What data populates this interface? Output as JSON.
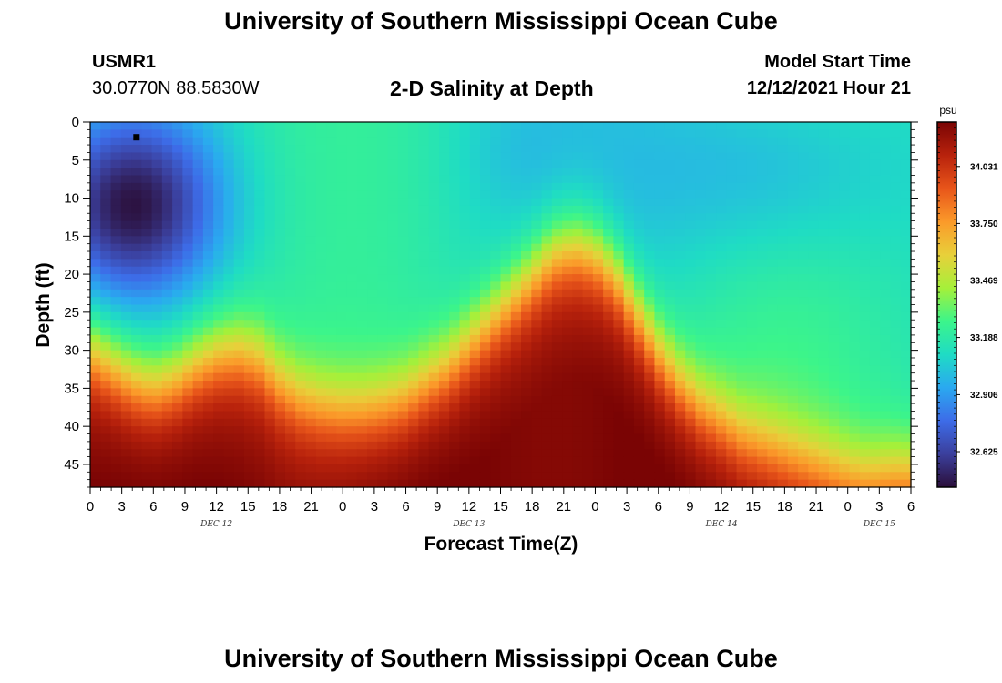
{
  "header": {
    "title": "University of Southern Mississippi Ocean Cube",
    "station": "USMR1",
    "coordinates": "30.0770N  88.5830W",
    "subtitle": "2-D Salinity at Depth",
    "start_label": "Model Start Time",
    "start_value": "12/12/2021 Hour 21"
  },
  "footer": {
    "title": "University of Southern Mississippi Ocean Cube"
  },
  "chart_data": {
    "type": "heatmap",
    "title": "2-D Salinity at Depth",
    "xlabel": "Forecast Time(Z)",
    "ylabel": "Depth (ft)",
    "x_range_hours": [
      0,
      78
    ],
    "y_range_ft": [
      0,
      48
    ],
    "x_tick_labels": [
      "0",
      "3",
      "6",
      "9",
      "12",
      "15",
      "18",
      "21",
      "0",
      "3",
      "6",
      "9",
      "12",
      "15",
      "18",
      "21",
      "0",
      "3",
      "6",
      "9",
      "12",
      "15",
      "18",
      "21",
      "0",
      "3",
      "6"
    ],
    "y_tick_labels": [
      "0",
      "5",
      "10",
      "15",
      "20",
      "25",
      "30",
      "35",
      "40",
      "45"
    ],
    "y_tick_values": [
      0,
      5,
      10,
      15,
      20,
      25,
      30,
      35,
      40,
      45
    ],
    "day_labels": [
      {
        "text": "DEC 12",
        "hour": 12
      },
      {
        "text": "DEC 13",
        "hour": 36
      },
      {
        "text": "DEC 14",
        "hour": 60
      },
      {
        "text": "DEC 15",
        "hour": 75
      }
    ],
    "colorbar": {
      "unit": "psu",
      "min": 32.45,
      "max": 34.25,
      "labels": [
        "34.031",
        "33.750",
        "33.469",
        "33.188",
        "32.906",
        "32.625"
      ],
      "label_values": [
        34.031,
        33.75,
        33.469,
        33.188,
        32.906,
        32.625
      ],
      "colors": [
        "#2b0f3a",
        "#3b3f9c",
        "#3d6ce8",
        "#2aa9f0",
        "#1fdcc4",
        "#3cf58a",
        "#a5f03a",
        "#e8d03a",
        "#fb9a2a",
        "#e8551a",
        "#b8220c",
        "#7a0404"
      ]
    },
    "marker": {
      "hour": 4.4,
      "depth_ft": 2
    },
    "interface_depth_ft": {
      "hours": [
        0,
        2,
        4,
        6,
        8,
        10,
        12,
        14,
        16,
        18,
        20,
        22,
        24,
        26,
        28,
        30,
        32,
        34,
        36,
        38,
        40,
        42,
        44,
        46,
        48,
        50,
        52,
        54,
        56,
        58,
        60,
        62,
        64,
        66,
        68,
        70,
        72,
        74,
        76,
        78
      ],
      "depths": [
        28,
        30,
        32,
        33,
        32,
        30,
        28.5,
        28,
        29,
        32,
        34,
        35,
        35.5,
        35.5,
        35,
        34,
        32,
        30,
        27,
        24,
        21,
        18,
        15,
        14,
        15,
        18,
        23,
        28,
        32,
        35,
        37,
        39,
        40,
        41,
        42,
        43,
        44,
        44.5,
        44,
        44
      ]
    },
    "fresh_pocket": {
      "center_hour": 4,
      "center_depth_ft": 11,
      "min_psu": 32.48
    }
  }
}
